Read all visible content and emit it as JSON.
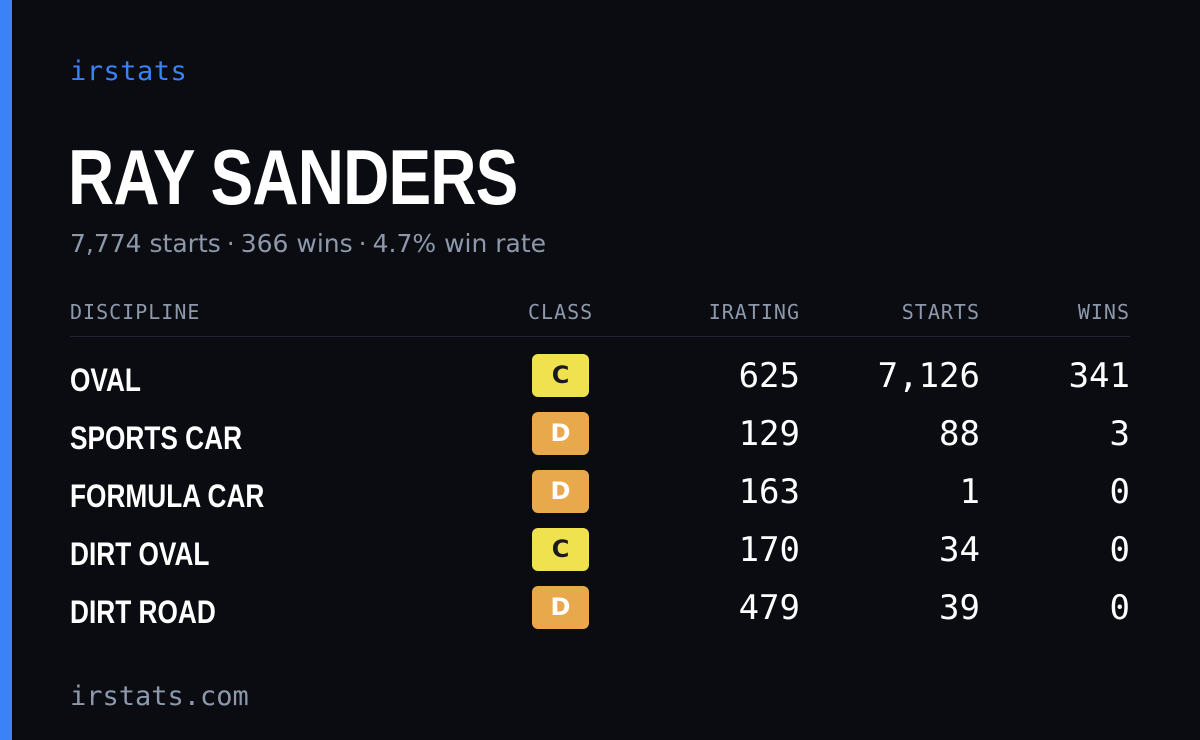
{
  "brand": "irstats",
  "driver": {
    "name": "RAY SANDERS",
    "starts_text": "7,774 starts",
    "wins_text": "366 wins",
    "win_rate_text": "4.7% win rate",
    "separator": "·"
  },
  "table": {
    "headers": {
      "discipline": "DISCIPLINE",
      "class": "CLASS",
      "irating": "IRATING",
      "starts": "STARTS",
      "wins": "WINS"
    },
    "rows": [
      {
        "discipline": "OVAL",
        "class": "C",
        "irating": "625",
        "starts": "7,126",
        "wins": "341"
      },
      {
        "discipline": "SPORTS CAR",
        "class": "D",
        "irating": "129",
        "starts": "88",
        "wins": "3"
      },
      {
        "discipline": "FORMULA CAR",
        "class": "D",
        "irating": "163",
        "starts": "1",
        "wins": "0"
      },
      {
        "discipline": "DIRT OVAL",
        "class": "C",
        "irating": "170",
        "starts": "34",
        "wins": "0"
      },
      {
        "discipline": "DIRT ROAD",
        "class": "D",
        "irating": "479",
        "starts": "39",
        "wins": "0"
      }
    ]
  },
  "class_colors": {
    "C": {
      "bg": "#f0e24e",
      "fg": "#1a1a1a"
    },
    "D": {
      "bg": "#e8a94c",
      "fg": "#ffffff"
    }
  },
  "colors": {
    "accent": "#3b82f6",
    "background": "#0a0c12",
    "muted_text": "#8e98ab"
  },
  "footer": "irstats.com"
}
